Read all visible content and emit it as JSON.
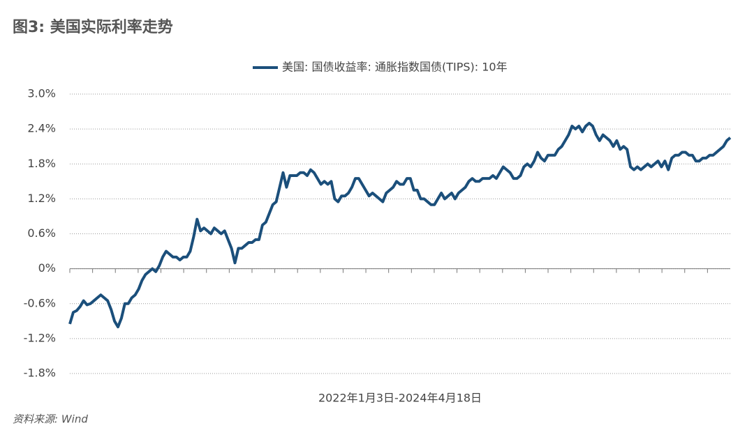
{
  "chart_data": {
    "type": "line",
    "title": "图3: 美国实际利率走势",
    "xlabel": "2022年1月3日-2024年4月18日",
    "source": "资料来源: Wind",
    "ylim": [
      -1.8,
      3.0
    ],
    "yticks": [
      {
        "value": 3.0,
        "label": "3.0%"
      },
      {
        "value": 2.4,
        "label": "2.4%"
      },
      {
        "value": 1.8,
        "label": "1.8%"
      },
      {
        "value": 1.2,
        "label": "1.2%"
      },
      {
        "value": 0.6,
        "label": "0.6%"
      },
      {
        "value": 0,
        "label": "0%"
      },
      {
        "value": -0.6,
        "label": "-0.6%"
      },
      {
        "value": -1.2,
        "label": "-1.2%"
      },
      {
        "value": -1.8,
        "label": "-1.8%"
      }
    ],
    "grid": true,
    "legend": "top",
    "series": [
      {
        "name": "美国: 国债收益率: 通胀指数国债(TIPS): 10年",
        "color": "#1b4f7b",
        "values": [
          -0.95,
          -0.75,
          -0.72,
          -0.65,
          -0.55,
          -0.62,
          -0.6,
          -0.55,
          -0.5,
          -0.45,
          -0.5,
          -0.55,
          -0.7,
          -0.9,
          -1.0,
          -0.85,
          -0.6,
          -0.6,
          -0.5,
          -0.45,
          -0.35,
          -0.2,
          -0.1,
          -0.05,
          0.0,
          -0.05,
          0.05,
          0.2,
          0.3,
          0.25,
          0.2,
          0.2,
          0.15,
          0.2,
          0.2,
          0.3,
          0.55,
          0.85,
          0.65,
          0.7,
          0.65,
          0.6,
          0.7,
          0.65,
          0.6,
          0.65,
          0.5,
          0.35,
          0.1,
          0.35,
          0.35,
          0.4,
          0.45,
          0.45,
          0.5,
          0.5,
          0.75,
          0.8,
          0.95,
          1.1,
          1.15,
          1.4,
          1.65,
          1.4,
          1.6,
          1.6,
          1.6,
          1.65,
          1.65,
          1.6,
          1.7,
          1.65,
          1.55,
          1.45,
          1.5,
          1.45,
          1.5,
          1.2,
          1.15,
          1.25,
          1.25,
          1.3,
          1.4,
          1.55,
          1.55,
          1.45,
          1.35,
          1.25,
          1.3,
          1.25,
          1.2,
          1.15,
          1.3,
          1.35,
          1.4,
          1.5,
          1.45,
          1.45,
          1.55,
          1.55,
          1.35,
          1.35,
          1.2,
          1.2,
          1.15,
          1.1,
          1.1,
          1.2,
          1.3,
          1.2,
          1.25,
          1.3,
          1.2,
          1.3,
          1.35,
          1.4,
          1.5,
          1.55,
          1.5,
          1.5,
          1.55,
          1.55,
          1.55,
          1.6,
          1.55,
          1.65,
          1.75,
          1.7,
          1.65,
          1.55,
          1.55,
          1.6,
          1.75,
          1.8,
          1.75,
          1.85,
          2.0,
          1.9,
          1.85,
          1.95,
          1.95,
          1.95,
          2.05,
          2.1,
          2.2,
          2.3,
          2.45,
          2.4,
          2.45,
          2.35,
          2.45,
          2.5,
          2.45,
          2.3,
          2.2,
          2.3,
          2.25,
          2.2,
          2.1,
          2.2,
          2.05,
          2.1,
          2.05,
          1.75,
          1.7,
          1.75,
          1.7,
          1.75,
          1.8,
          1.75,
          1.8,
          1.85,
          1.75,
          1.85,
          1.7,
          1.9,
          1.95,
          1.95,
          2.0,
          2.0,
          1.95,
          1.95,
          1.85,
          1.85,
          1.9,
          1.9,
          1.95,
          1.95,
          2.0,
          2.05,
          2.1,
          2.2,
          2.25
        ]
      }
    ]
  }
}
